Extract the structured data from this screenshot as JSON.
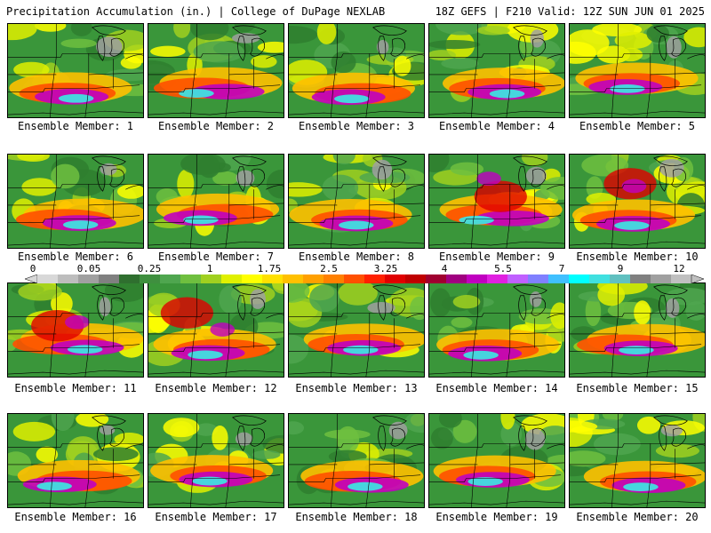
{
  "header": {
    "left": "Precipitation Accumulation (in.) | College of DuPage NEXLAB",
    "right": "18Z GEFS | F210 Valid: 12Z SUN JUN 01 2025"
  },
  "panels": [
    {
      "label": "Ensemble Member: 1",
      "style": 0
    },
    {
      "label": "Ensemble Member: 2",
      "style": 1
    },
    {
      "label": "Ensemble Member: 3",
      "style": 2
    },
    {
      "label": "Ensemble Member: 4",
      "style": 3
    },
    {
      "label": "Ensemble Member: 5",
      "style": 4
    },
    {
      "label": "Ensemble Member: 6",
      "style": 5
    },
    {
      "label": "Ensemble Member: 7",
      "style": 6
    },
    {
      "label": "Ensemble Member: 8",
      "style": 7
    },
    {
      "label": "Ensemble Member: 9",
      "style": 8
    },
    {
      "label": "Ensemble Member: 10",
      "style": 9
    },
    {
      "label": "Ensemble Member: 11",
      "style": 10
    },
    {
      "label": "Ensemble Member: 12",
      "style": 11
    },
    {
      "label": "Ensemble Member: 13",
      "style": 12
    },
    {
      "label": "Ensemble Member: 14",
      "style": 13
    },
    {
      "label": "Ensemble Member: 15",
      "style": 14
    },
    {
      "label": "Ensemble Member: 16",
      "style": 15
    },
    {
      "label": "Ensemble Member: 17",
      "style": 16
    },
    {
      "label": "Ensemble Member: 18",
      "style": 17
    },
    {
      "label": "Ensemble Member: 19",
      "style": 18
    },
    {
      "label": "Ensemble Member: 20",
      "style": 19
    }
  ],
  "colorbar": {
    "tick_labels": [
      "0",
      "0.05",
      "0.25",
      "1",
      "1.75",
      "2.5",
      "3.25",
      "4",
      "5.5",
      "7",
      "9",
      "12"
    ],
    "colors": [
      "#d8d8d8",
      "#bdbdbd",
      "#a0a0a0",
      "#808080",
      "#2f6f2f",
      "#3f8f3f",
      "#4fa64f",
      "#6fbf3f",
      "#a0d020",
      "#e0f000",
      "#ffff00",
      "#ffe000",
      "#ffc000",
      "#ffa000",
      "#ff8000",
      "#ff5000",
      "#ff2000",
      "#e00000",
      "#c00000",
      "#a00030",
      "#a00080",
      "#c000c0",
      "#e020e0",
      "#c060ff",
      "#8080ff",
      "#40c0ff",
      "#00ffff",
      "#40e0e0",
      "#60c0c0",
      "#808080",
      "#a0a0a0",
      "#c0c0c0"
    ]
  }
}
